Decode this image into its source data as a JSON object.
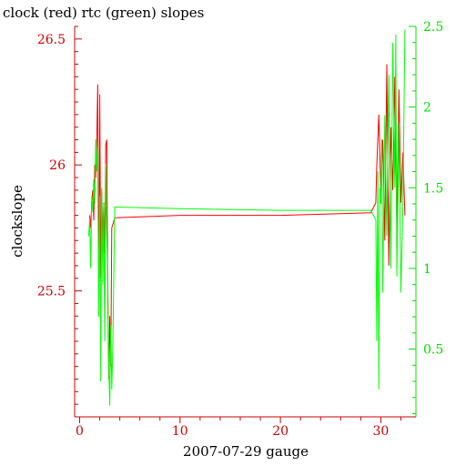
{
  "chart_data": {
    "type": "line",
    "title": "clock (red) rtc (green) slopes",
    "xlabel": "2007-07-29 gauge",
    "ylabel": "clockslope",
    "xlim": [
      -0.5,
      33.5
    ],
    "ylim_left": [
      25.0,
      26.55
    ],
    "ylim_right": [
      0.08,
      2.5
    ],
    "x_ticks": [
      0,
      10,
      20,
      30
    ],
    "y_ticks_left": [
      25.5,
      26,
      26.5
    ],
    "y_ticks_right": [
      0.5,
      1,
      1.5,
      2,
      2.5
    ],
    "grid": false,
    "series": [
      {
        "name": "clock",
        "color": "#ff0000",
        "axis": "left",
        "points": [
          [
            1.0,
            25.8
          ],
          [
            1.1,
            25.75
          ],
          [
            1.2,
            25.85
          ],
          [
            1.3,
            25.9
          ],
          [
            1.4,
            25.78
          ],
          [
            1.5,
            26.0
          ],
          [
            1.6,
            25.95
          ],
          [
            1.7,
            26.1
          ],
          [
            1.8,
            26.32
          ],
          [
            1.9,
            25.4
          ],
          [
            2.0,
            26.28
          ],
          [
            2.1,
            25.55
          ],
          [
            2.2,
            25.9
          ],
          [
            2.3,
            25.7
          ],
          [
            2.4,
            25.85
          ],
          [
            2.5,
            25.65
          ],
          [
            2.6,
            26.08
          ],
          [
            2.7,
            26.1
          ],
          [
            2.8,
            25.5
          ],
          [
            2.9,
            25.15
          ],
          [
            3.0,
            25.4
          ],
          [
            3.1,
            25.2
          ],
          [
            3.2,
            25.75
          ],
          [
            3.5,
            25.79
          ],
          [
            10.0,
            25.8
          ],
          [
            20.0,
            25.8
          ],
          [
            29.0,
            25.81
          ],
          [
            29.5,
            25.85
          ],
          [
            29.6,
            26.0
          ],
          [
            29.8,
            26.2
          ],
          [
            30.0,
            25.9
          ],
          [
            30.2,
            26.1
          ],
          [
            30.4,
            25.7
          ],
          [
            30.6,
            26.4
          ],
          [
            30.8,
            25.6
          ],
          [
            31.0,
            26.15
          ],
          [
            31.2,
            25.9
          ],
          [
            31.4,
            26.35
          ],
          [
            31.6,
            25.75
          ],
          [
            31.8,
            26.3
          ],
          [
            32.0,
            25.85
          ],
          [
            32.2,
            26.05
          ],
          [
            32.4,
            25.8
          ]
        ]
      },
      {
        "name": "rtc",
        "color": "#00ff00",
        "axis": "right",
        "points": [
          [
            0.9,
            1.2
          ],
          [
            1.0,
            1.3
          ],
          [
            1.1,
            1.0
          ],
          [
            1.2,
            1.45
          ],
          [
            1.3,
            1.35
          ],
          [
            1.4,
            1.55
          ],
          [
            1.5,
            1.4
          ],
          [
            1.6,
            1.8
          ],
          [
            1.7,
            1.6
          ],
          [
            1.8,
            1.75
          ],
          [
            1.9,
            0.7
          ],
          [
            2.0,
            1.45
          ],
          [
            2.1,
            0.3
          ],
          [
            2.2,
            1.5
          ],
          [
            2.3,
            0.9
          ],
          [
            2.4,
            1.4
          ],
          [
            2.5,
            0.55
          ],
          [
            2.6,
            1.65
          ],
          [
            2.7,
            1.2
          ],
          [
            2.8,
            0.95
          ],
          [
            2.9,
            0.4
          ],
          [
            3.0,
            0.15
          ],
          [
            3.1,
            0.65
          ],
          [
            3.2,
            0.25
          ],
          [
            3.3,
            0.5
          ],
          [
            3.5,
            1.38
          ],
          [
            10.0,
            1.37
          ],
          [
            20.0,
            1.36
          ],
          [
            29.0,
            1.36
          ],
          [
            29.5,
            1.3
          ],
          [
            29.6,
            0.55
          ],
          [
            29.7,
            1.6
          ],
          [
            29.8,
            0.25
          ],
          [
            29.9,
            1.5
          ],
          [
            30.0,
            1.4
          ],
          [
            30.1,
            1.8
          ],
          [
            30.2,
            0.85
          ],
          [
            30.4,
            1.95
          ],
          [
            30.6,
            1.2
          ],
          [
            30.8,
            2.2
          ],
          [
            31.0,
            1.0
          ],
          [
            31.2,
            2.4
          ],
          [
            31.4,
            1.5
          ],
          [
            31.5,
            2.45
          ],
          [
            31.6,
            0.95
          ],
          [
            31.8,
            1.9
          ],
          [
            32.0,
            0.85
          ],
          [
            32.2,
            1.4
          ],
          [
            32.4,
            2.48
          ]
        ]
      }
    ]
  }
}
